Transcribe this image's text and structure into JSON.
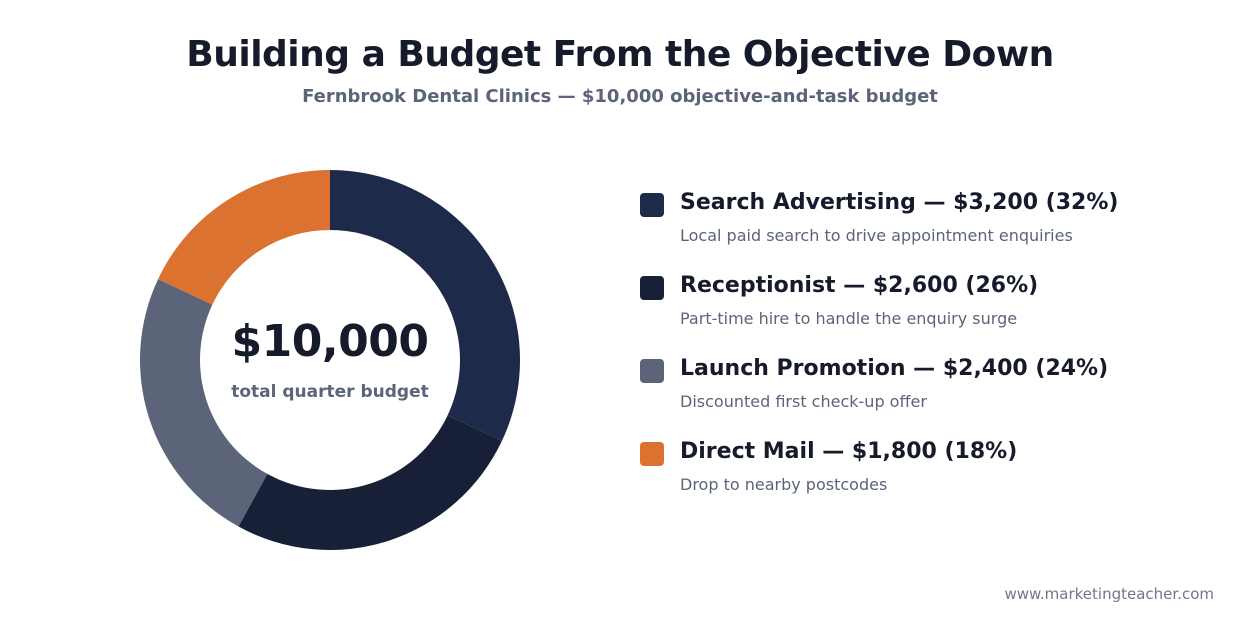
{
  "header": {
    "title": "Building a Budget From the Objective Down",
    "subtitle": "Fernbrook Dental Clinics — $10,000 objective-and-task budget"
  },
  "center": {
    "value": "$10,000",
    "label": "total quarter budget"
  },
  "chart_data": {
    "type": "pie",
    "total": 10000,
    "categories": [
      "Search Advertising",
      "Receptionist",
      "Launch Promotion",
      "Direct Mail"
    ],
    "values": [
      3200,
      2600,
      2400,
      1800
    ],
    "percents": [
      32,
      26,
      24,
      18
    ],
    "colors": [
      "#1e2a4a",
      "#172037",
      "#5b6478",
      "#db7230"
    ],
    "legend_placement": "right"
  },
  "legend": {
    "items": [
      {
        "heading": "Search Advertising — $3,200 (32%)",
        "description": "Local paid search to drive appointment enquiries",
        "color": "#1e2a4a"
      },
      {
        "heading": "Receptionist — $2,600 (26%)",
        "description": "Part-time hire to handle the enquiry surge",
        "color": "#172037"
      },
      {
        "heading": "Launch Promotion — $2,400 (24%)",
        "description": "Discounted first check-up offer",
        "color": "#5b6478"
      },
      {
        "heading": "Direct Mail — $1,800 (18%)",
        "description": "Drop to nearby postcodes",
        "color": "#db7230"
      }
    ]
  },
  "footer": {
    "source": "www.marketingteacher.com"
  }
}
